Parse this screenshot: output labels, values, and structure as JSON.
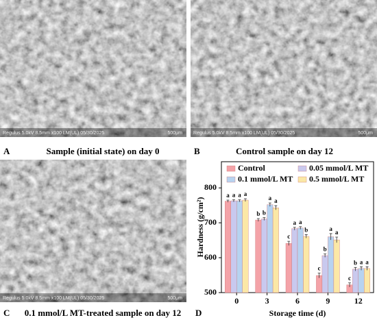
{
  "panels": [
    {
      "letter": "A",
      "caption": "Sample (initial state) on day 0",
      "sem_info": "Regulus 5.0kV 8.5mm x100 LM(UL) 05/30/2025",
      "scale": "500μm"
    },
    {
      "letter": "B",
      "caption": "Control sample on day 12",
      "sem_info": "Regulus 5.0kV 8.5mm x100 LM(UL) 05/30/2025",
      "scale": "500μm"
    },
    {
      "letter": "C",
      "caption": "0.1 mmol/L MT-treated sample on day 12",
      "sem_info": "Regulus 5.0kV 8.5mm x100 LM(UL) 05/30/2025",
      "scale": "500μm"
    },
    {
      "letter": "D"
    }
  ],
  "chart_data": {
    "type": "bar",
    "x_label": "Storage time (d)",
    "y_label": "Hardness (g/cm²)",
    "categories": [
      "0",
      "3",
      "6",
      "9",
      "12"
    ],
    "series": [
      {
        "name": "Control",
        "color": "#f4a3a8",
        "values": [
          762,
          708,
          641,
          549,
          522
        ],
        "errors": [
          3,
          4,
          6,
          7,
          6
        ],
        "letters": [
          "a",
          "b",
          "c",
          "c",
          "c"
        ]
      },
      {
        "name": "0.05 mmol/L MT",
        "color": "#c9c9ee",
        "values": [
          763,
          711,
          683,
          606,
          567
        ],
        "errors": [
          3,
          4,
          4,
          5,
          5
        ],
        "letters": [
          "a",
          "b",
          "a",
          "b",
          "b"
        ]
      },
      {
        "name": "0.1 mmol/L MT",
        "color": "#b7d3f0",
        "values": [
          763,
          752,
          685,
          660,
          569
        ],
        "errors": [
          3,
          5,
          4,
          9,
          5
        ],
        "letters": [
          "a",
          "a",
          "a",
          "a",
          "a"
        ]
      },
      {
        "name": "0.5 mmol/L MT",
        "color": "#fbe8a6",
        "values": [
          765,
          743,
          661,
          651,
          569
        ],
        "errors": [
          4,
          6,
          5,
          8,
          5
        ],
        "letters": [
          "a",
          "a",
          "b",
          "a",
          "a"
        ]
      }
    ],
    "ylim": [
      500,
      875
    ],
    "yticks": [
      500,
      600,
      700,
      800
    ],
    "legend": "upper left"
  }
}
